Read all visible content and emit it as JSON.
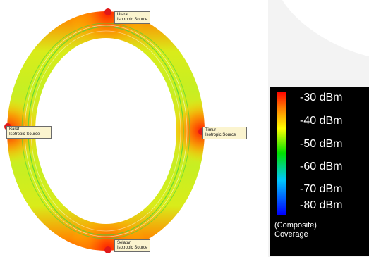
{
  "sources": [
    {
      "name": "Utara",
      "type": "Isotropic Source"
    },
    {
      "name": "Timur",
      "type": "Isotropic Source"
    },
    {
      "name": "Selatan",
      "type": "Isotropic Source"
    },
    {
      "name": "Barat",
      "type": "Isotropic Source"
    }
  ],
  "legend": {
    "ticks": [
      "-30 dBm",
      "-40 dBm",
      "-50 dBm",
      "-60 dBm",
      "-70 dBm",
      "-80 dBm"
    ],
    "caption_line1": "(Composite)",
    "caption_line2": "Coverage",
    "colors": [
      "#ff0000",
      "#ff7a00",
      "#ffff00",
      "#00e000",
      "#00c8ff",
      "#0000ff"
    ]
  }
}
